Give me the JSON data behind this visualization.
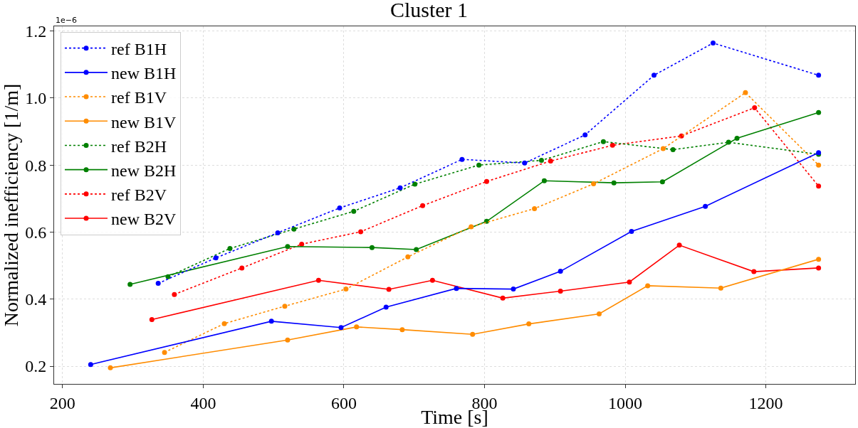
{
  "chart_data": {
    "type": "line",
    "title": "Cluster 1",
    "xlabel": "Time [s]",
    "ylabel": "Normalized inefficiency [1/m]",
    "annotations": [
      "1e−6"
    ],
    "xlim": [
      188,
      1327
    ],
    "ylim": [
      0.147,
      1.214
    ],
    "xticks": [
      200,
      400,
      600,
      800,
      1000,
      1200
    ],
    "yticks": [
      0.2,
      0.4,
      0.6,
      0.8,
      {
        "value": 1.0,
        "label": "1.0"
      },
      1.2
    ],
    "grid": true,
    "legend": "top left",
    "marker": "circle",
    "series": [
      {
        "name": "ref B1H",
        "color": "#0000ff",
        "line_style": "dotted",
        "x": [
          336,
          418,
          506,
          594,
          680,
          768,
          857,
          943,
          1041,
          1125,
          1275
        ],
        "values": [
          0.447,
          0.523,
          0.598,
          0.672,
          0.732,
          0.817,
          0.806,
          0.89,
          1.068,
          1.164,
          1.068
        ]
      },
      {
        "name": "new B1H",
        "color": "#0000ff",
        "line_style": "solid",
        "x": [
          240,
          497,
          596,
          660,
          760,
          841,
          908,
          1009,
          1114,
          1275
        ],
        "values": [
          0.205,
          0.334,
          0.315,
          0.376,
          0.432,
          0.43,
          0.483,
          0.602,
          0.677,
          0.837
        ]
      },
      {
        "name": "ref B1V",
        "color": "#ff8c00",
        "line_style": "dotted",
        "x": [
          345,
          430,
          516,
          603,
          691,
          781,
          871,
          955,
          1054,
          1171,
          1275
        ],
        "values": [
          0.241,
          0.327,
          0.379,
          0.43,
          0.526,
          0.616,
          0.67,
          0.744,
          0.849,
          1.016,
          0.8
        ]
      },
      {
        "name": "new B1V",
        "color": "#ff8c00",
        "line_style": "solid",
        "x": [
          268,
          520,
          618,
          683,
          783,
          863,
          963,
          1032,
          1136,
          1275
        ],
        "values": [
          0.195,
          0.278,
          0.317,
          0.309,
          0.295,
          0.326,
          0.356,
          0.44,
          0.433,
          0.519
        ]
      },
      {
        "name": "ref B2H",
        "color": "#008000",
        "line_style": "dotted",
        "x": [
          350,
          438,
          529,
          614,
          701,
          792,
          881,
          969,
          1068,
          1147,
          1275
        ],
        "values": [
          0.467,
          0.551,
          0.609,
          0.662,
          0.743,
          0.8,
          0.814,
          0.87,
          0.846,
          0.868,
          0.832
        ]
      },
      {
        "name": "new B2H",
        "color": "#008000",
        "line_style": "solid",
        "x": [
          296,
          520,
          640,
          703,
          803,
          885,
          984,
          1053,
          1159,
          1275
        ],
        "values": [
          0.444,
          0.557,
          0.554,
          0.548,
          0.632,
          0.753,
          0.747,
          0.75,
          0.88,
          0.957
        ]
      },
      {
        "name": "ref B2V",
        "color": "#ff0000",
        "line_style": "dotted",
        "x": [
          359,
          455,
          540,
          624,
          712,
          803,
          894,
          982,
          1080,
          1184,
          1275
        ],
        "values": [
          0.414,
          0.493,
          0.564,
          0.601,
          0.679,
          0.751,
          0.812,
          0.859,
          0.887,
          0.971,
          0.737
        ]
      },
      {
        "name": "new B2V",
        "color": "#ff0000",
        "line_style": "solid",
        "x": [
          327,
          564,
          664,
          726,
          826,
          908,
          1006,
          1077,
          1183,
          1275
        ],
        "values": [
          0.339,
          0.456,
          0.429,
          0.456,
          0.403,
          0.424,
          0.451,
          0.561,
          0.482,
          0.493
        ]
      }
    ]
  }
}
